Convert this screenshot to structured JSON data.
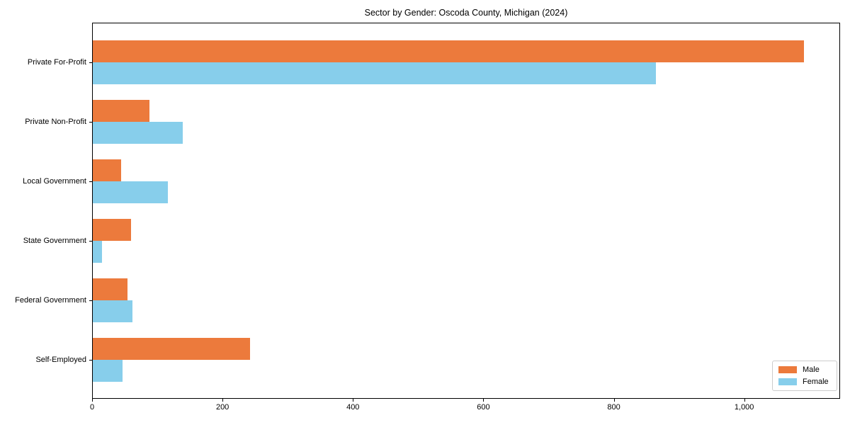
{
  "chart_data": {
    "type": "bar",
    "orientation": "horizontal",
    "title": "Sector by Gender: Oscoda County, Michigan (2024)",
    "categories": [
      "Private For-Profit",
      "Private Non-Profit",
      "Local Government",
      "State Government",
      "Federal Government",
      "Self-Employed"
    ],
    "series": [
      {
        "name": "Male",
        "color": "#ec7a3c",
        "values": [
          1092,
          88,
          45,
          60,
          54,
          242
        ]
      },
      {
        "name": "Female",
        "color": "#87ceeb",
        "values": [
          865,
          139,
          116,
          15,
          62,
          47
        ]
      }
    ],
    "x_ticks": [
      0,
      200,
      400,
      600,
      800,
      1000
    ],
    "x_tick_labels": [
      "0",
      "200",
      "400",
      "600",
      "800",
      "1,000"
    ],
    "xlim": [
      0,
      1147
    ],
    "ylabel": "",
    "xlabel": "",
    "grid": false,
    "legend": {
      "position": "lower right",
      "entries": [
        "Male",
        "Female"
      ]
    },
    "colors": {
      "background": "#ffffff",
      "spine": "#000000",
      "male": "#ec7a3c",
      "female": "#87ceeb"
    }
  }
}
